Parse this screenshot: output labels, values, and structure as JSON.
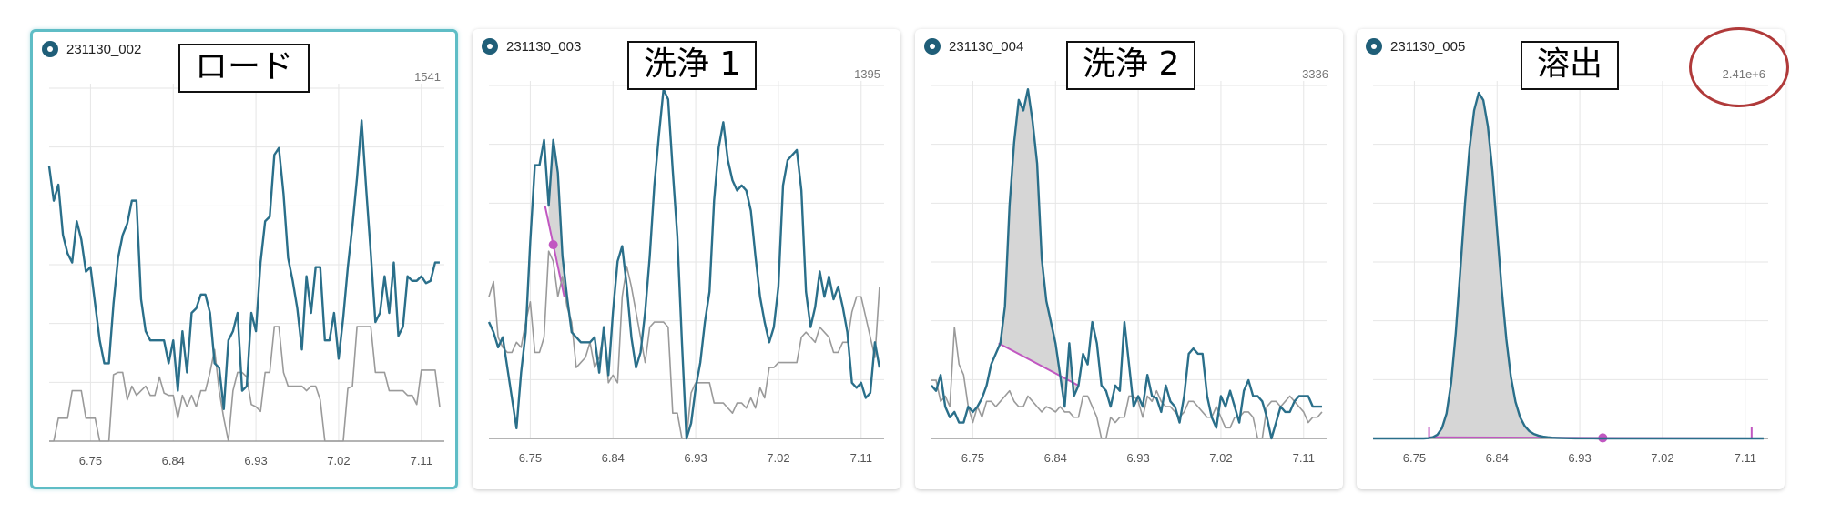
{
  "panels": [
    {
      "sample": "231130_002",
      "label": "ロード",
      "ymax": "1541",
      "selected": true
    },
    {
      "sample": "231130_003",
      "label": "洗浄 1",
      "ymax": "1395",
      "selected": false
    },
    {
      "sample": "231130_004",
      "label": "洗浄 2",
      "ymax": "3336",
      "selected": false
    },
    {
      "sample": "231130_005",
      "label": "溶出",
      "ymax": "2.41e+6",
      "selected": false
    }
  ],
  "colors": {
    "primary_trace": "#2a6f8a",
    "reference_trace": "#9a9a9a",
    "baseline": "#c157c1",
    "peak_fill": "#d6d6d6",
    "selected_border": "#5fbdc6",
    "highlight_ring": "#b03a3a",
    "grid": "#e6e6e6"
  },
  "chart_data": [
    {
      "type": "line",
      "title": "231130_002",
      "x_ticks": [
        "6.75",
        "6.84",
        "6.93",
        "7.02",
        "7.11"
      ],
      "xlim": [
        6.705,
        7.135
      ],
      "ylim": [
        0,
        1541
      ],
      "x": [
        6.705,
        6.71,
        6.715,
        6.72,
        6.725,
        6.73,
        6.735,
        6.74,
        6.745,
        6.75,
        6.755,
        6.76,
        6.765,
        6.77,
        6.775,
        6.78,
        6.785,
        6.79,
        6.795,
        6.8,
        6.805,
        6.81,
        6.815,
        6.82,
        6.825,
        6.83,
        6.835,
        6.84,
        6.845,
        6.85,
        6.855,
        6.86,
        6.865,
        6.87,
        6.875,
        6.88,
        6.885,
        6.89,
        6.895,
        6.9,
        6.905,
        6.91,
        6.915,
        6.92,
        6.925,
        6.93,
        6.935,
        6.94,
        6.945,
        6.95,
        6.955,
        6.96,
        6.965,
        6.97,
        6.975,
        6.98,
        6.985,
        6.99,
        6.995,
        7.0,
        7.005,
        7.01,
        7.015,
        7.02,
        7.025,
        7.03,
        7.035,
        7.04,
        7.045,
        7.05,
        7.055,
        7.06,
        7.065,
        7.07,
        7.075,
        7.08,
        7.085,
        7.09,
        7.095,
        7.1,
        7.105,
        7.11,
        7.115,
        7.12,
        7.125,
        7.13
      ],
      "series": [
        {
          "values": [
            1200,
            1050,
            1120,
            900,
            820,
            780,
            960,
            880,
            740,
            760,
            600,
            440,
            340,
            340,
            600,
            800,
            900,
            950,
            1050,
            1050,
            620,
            480,
            440,
            440,
            440,
            440,
            340,
            440,
            220,
            480,
            300,
            560,
            580,
            640,
            640,
            560,
            340,
            320,
            140,
            440,
            480,
            560,
            220,
            240,
            560,
            480,
            780,
            960,
            980,
            1250,
            1280,
            1080,
            800,
            700,
            580,
            400,
            720,
            560,
            760,
            760,
            440,
            440,
            560,
            360,
            540,
            760,
            940,
            1150,
            1400,
            1100,
            820,
            520,
            560,
            720,
            560,
            780,
            460,
            500,
            720,
            700,
            700,
            720,
            690,
            700,
            780,
            780
          ]
        },
        {
          "values": [
            0,
            0,
            100,
            100,
            100,
            220,
            220,
            220,
            100,
            100,
            100,
            0,
            0,
            0,
            290,
            300,
            300,
            180,
            240,
            200,
            220,
            240,
            200,
            200,
            280,
            210,
            200,
            200,
            100,
            200,
            150,
            200,
            150,
            220,
            220,
            300,
            400,
            220,
            100,
            0,
            220,
            300,
            300,
            280,
            160,
            150,
            130,
            300,
            300,
            500,
            500,
            300,
            240,
            240,
            240,
            240,
            220,
            240,
            240,
            180,
            0,
            0,
            0,
            0,
            0,
            230,
            240,
            500,
            500,
            500,
            500,
            300,
            300,
            300,
            220,
            220,
            220,
            220,
            200,
            200,
            160,
            310,
            310,
            310,
            310,
            150
          ]
        }
      ]
    },
    {
      "type": "line",
      "title": "231130_003",
      "x_ticks": [
        "6.75",
        "6.84",
        "6.93",
        "7.02",
        "7.11"
      ],
      "xlim": [
        6.705,
        7.135
      ],
      "ylim": [
        0,
        1395
      ],
      "x": [
        6.705,
        6.71,
        6.715,
        6.72,
        6.725,
        6.73,
        6.735,
        6.74,
        6.745,
        6.75,
        6.755,
        6.76,
        6.765,
        6.77,
        6.775,
        6.78,
        6.785,
        6.79,
        6.795,
        6.8,
        6.805,
        6.81,
        6.815,
        6.82,
        6.825,
        6.83,
        6.835,
        6.84,
        6.845,
        6.85,
        6.855,
        6.86,
        6.865,
        6.87,
        6.875,
        6.88,
        6.885,
        6.89,
        6.895,
        6.9,
        6.905,
        6.91,
        6.915,
        6.92,
        6.925,
        6.93,
        6.935,
        6.94,
        6.945,
        6.95,
        6.955,
        6.96,
        6.965,
        6.97,
        6.975,
        6.98,
        6.985,
        6.99,
        6.995,
        7.0,
        7.005,
        7.01,
        7.015,
        7.02,
        7.025,
        7.03,
        7.035,
        7.04,
        7.045,
        7.05,
        7.055,
        7.06,
        7.065,
        7.07,
        7.075,
        7.08,
        7.085,
        7.09,
        7.095,
        7.1,
        7.105,
        7.11,
        7.115,
        7.12,
        7.125,
        7.13
      ],
      "series": [
        {
          "values": [
            460,
            420,
            360,
            400,
            280,
            160,
            40,
            260,
            420,
            780,
            1080,
            1080,
            1180,
            920,
            1180,
            1050,
            720,
            560,
            420,
            400,
            380,
            380,
            380,
            400,
            260,
            440,
            250,
            500,
            700,
            760,
            600,
            400,
            280,
            340,
            500,
            720,
            1000,
            1200,
            1380,
            1340,
            1060,
            800,
            380,
            0,
            60,
            200,
            300,
            460,
            580,
            940,
            1150,
            1250,
            1100,
            1020,
            980,
            1000,
            980,
            900,
            720,
            560,
            460,
            380,
            440,
            600,
            1000,
            1100,
            1120,
            1140,
            980,
            580,
            440,
            520,
            660,
            560,
            640,
            550,
            600,
            520,
            420,
            220,
            200,
            220,
            160,
            180,
            380,
            280
          ]
        },
        {
          "values": [
            560,
            620,
            400,
            360,
            340,
            340,
            380,
            360,
            460,
            540,
            340,
            340,
            400,
            740,
            700,
            560,
            640,
            520,
            460,
            280,
            300,
            320,
            380,
            280,
            320,
            420,
            220,
            250,
            220,
            560,
            680,
            600,
            500,
            400,
            300,
            440,
            460,
            460,
            460,
            440,
            100,
            100,
            0,
            0,
            180,
            220,
            220,
            220,
            220,
            140,
            140,
            140,
            120,
            100,
            140,
            140,
            120,
            160,
            120,
            200,
            160,
            280,
            280,
            300,
            300,
            300,
            300,
            300,
            400,
            420,
            400,
            380,
            440,
            420,
            400,
            340,
            340,
            380,
            380,
            500,
            560,
            560,
            480,
            400,
            320,
            600
          ]
        }
      ],
      "annotations": {
        "peak_start": 6.766,
        "peak_end": 6.787,
        "marker": 6.775
      }
    },
    {
      "type": "line",
      "title": "231130_004",
      "x_ticks": [
        "6.75",
        "6.84",
        "6.93",
        "7.02",
        "7.11"
      ],
      "xlim": [
        6.705,
        7.135
      ],
      "ylim": [
        0,
        3336
      ],
      "x": [
        6.705,
        6.71,
        6.715,
        6.72,
        6.725,
        6.73,
        6.735,
        6.74,
        6.745,
        6.75,
        6.755,
        6.76,
        6.765,
        6.77,
        6.775,
        6.78,
        6.785,
        6.79,
        6.795,
        6.8,
        6.805,
        6.81,
        6.815,
        6.82,
        6.825,
        6.83,
        6.835,
        6.84,
        6.845,
        6.85,
        6.855,
        6.86,
        6.865,
        6.87,
        6.875,
        6.88,
        6.885,
        6.89,
        6.895,
        6.9,
        6.905,
        6.91,
        6.915,
        6.92,
        6.925,
        6.93,
        6.935,
        6.94,
        6.945,
        6.95,
        6.955,
        6.96,
        6.965,
        6.97,
        6.975,
        6.98,
        6.985,
        6.99,
        6.995,
        7.0,
        7.005,
        7.01,
        7.015,
        7.02,
        7.025,
        7.03,
        7.035,
        7.04,
        7.045,
        7.05,
        7.055,
        7.06,
        7.065,
        7.07,
        7.075,
        7.08,
        7.085,
        7.09,
        7.095,
        7.1,
        7.105,
        7.11,
        7.115,
        7.12,
        7.125,
        7.13
      ],
      "series": [
        {
          "values": [
            500,
            450,
            600,
            300,
            200,
            250,
            150,
            150,
            300,
            250,
            300,
            380,
            500,
            700,
            800,
            900,
            1250,
            2200,
            2800,
            3200,
            3100,
            3300,
            3000,
            2600,
            1700,
            1300,
            1100,
            900,
            600,
            300,
            900,
            400,
            500,
            800,
            700,
            1100,
            900,
            500,
            450,
            300,
            500,
            450,
            1100,
            700,
            300,
            400,
            300,
            600,
            400,
            380,
            250,
            500,
            350,
            300,
            150,
            400,
            800,
            850,
            800,
            800,
            400,
            200,
            100,
            400,
            300,
            450,
            300,
            150,
            450,
            550,
            400,
            400,
            350,
            200,
            0,
            150,
            300,
            250,
            250,
            350,
            400,
            400,
            400,
            300,
            300,
            300
          ]
        },
        {
          "values": [
            550,
            550,
            350,
            400,
            300,
            1050,
            700,
            600,
            300,
            150,
            300,
            200,
            350,
            350,
            300,
            350,
            400,
            450,
            350,
            300,
            300,
            400,
            350,
            300,
            250,
            300,
            280,
            250,
            300,
            250,
            250,
            200,
            200,
            400,
            400,
            300,
            200,
            0,
            0,
            200,
            150,
            200,
            200,
            400,
            400,
            350,
            200,
            400,
            350,
            450,
            350,
            300,
            300,
            250,
            200,
            250,
            350,
            350,
            300,
            250,
            200,
            200,
            300,
            200,
            100,
            100,
            200,
            200,
            250,
            250,
            200,
            0,
            0,
            300,
            350,
            350,
            300,
            350,
            400,
            350,
            300,
            250,
            150,
            200,
            200,
            250
          ]
        }
      ],
      "annotations": {
        "peak_start": 6.778,
        "peak_end": 6.865
      }
    },
    {
      "type": "line",
      "title": "231130_005",
      "x_ticks": [
        "6.75",
        "6.84",
        "6.93",
        "7.02",
        "7.11"
      ],
      "xlim": [
        6.705,
        7.135
      ],
      "ylim": [
        0,
        2410000
      ],
      "x": [
        6.705,
        6.71,
        6.715,
        6.72,
        6.725,
        6.73,
        6.735,
        6.74,
        6.745,
        6.75,
        6.755,
        6.76,
        6.765,
        6.77,
        6.775,
        6.78,
        6.785,
        6.79,
        6.795,
        6.8,
        6.805,
        6.81,
        6.815,
        6.82,
        6.825,
        6.83,
        6.835,
        6.84,
        6.845,
        6.85,
        6.855,
        6.86,
        6.865,
        6.87,
        6.875,
        6.88,
        6.885,
        6.89,
        6.895,
        6.9,
        6.905,
        6.91,
        6.915,
        6.92,
        6.925,
        6.93,
        6.935,
        6.94,
        6.945,
        6.95,
        6.955,
        6.96,
        6.965,
        6.97,
        6.975,
        6.98,
        6.985,
        6.99,
        6.995,
        7.0,
        7.005,
        7.01,
        7.015,
        7.02,
        7.025,
        7.03,
        7.035,
        7.04,
        7.045,
        7.05,
        7.055,
        7.06,
        7.065,
        7.07,
        7.075,
        7.08,
        7.085,
        7.09,
        7.095,
        7.1,
        7.105,
        7.11,
        7.115,
        7.12,
        7.125,
        7.13
      ],
      "series": [
        {
          "values": [
            0,
            0,
            0,
            0,
            0,
            0,
            0,
            0,
            0,
            0,
            0,
            0,
            2000,
            8000,
            25000,
            70000,
            170000,
            380000,
            720000,
            1150000,
            1600000,
            1980000,
            2240000,
            2360000,
            2310000,
            2130000,
            1820000,
            1420000,
            1020000,
            680000,
            420000,
            250000,
            145000,
            85000,
            50000,
            30000,
            19000,
            12000,
            8000,
            5000,
            3500,
            2500,
            1800,
            1200,
            800,
            500,
            300,
            200,
            100,
            0,
            0,
            0,
            0,
            0,
            0,
            0,
            0,
            0,
            0,
            0,
            0,
            0,
            0,
            0,
            0,
            0,
            0,
            0,
            0,
            0,
            0,
            0,
            0,
            0,
            0,
            0,
            0,
            0,
            0,
            0,
            0,
            0,
            0,
            0,
            0,
            0
          ]
        }
      ],
      "annotations": {
        "peak_start": 6.766,
        "peak_end": 7.117,
        "marker": 6.955
      }
    }
  ]
}
